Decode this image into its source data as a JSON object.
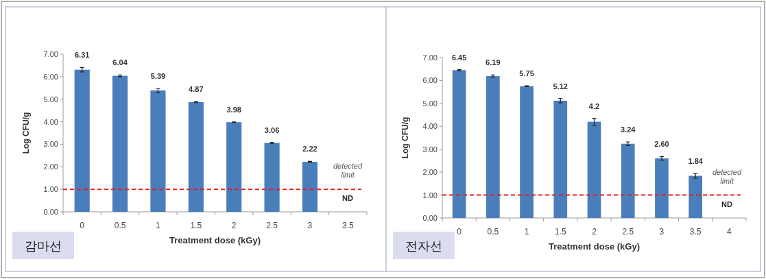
{
  "chart_data": [
    {
      "type": "bar",
      "xlabel": "Treatment dose (kGy)",
      "ylabel": "Log CFU/g",
      "categories": [
        "0",
        "0.5",
        "1",
        "1.5",
        "2",
        "2.5",
        "3",
        "3.5"
      ],
      "values": [
        6.31,
        6.04,
        5.39,
        4.87,
        3.98,
        3.06,
        2.22,
        null
      ],
      "errors": [
        0.1,
        0.04,
        0.08,
        0.02,
        0.01,
        0.02,
        0.02,
        null
      ],
      "value_labels": [
        "6.31",
        "6.04",
        "5.39",
        "4.87",
        "3.98",
        "3.06",
        "2.22",
        null
      ],
      "color": "#4a7ebb",
      "ylim": [
        0,
        7
      ],
      "yticks": [
        {
          "value": 0,
          "label": "0.00"
        },
        {
          "value": 1,
          "label": "1.00"
        },
        {
          "value": 2,
          "label": "2.00"
        },
        {
          "value": 3,
          "label": "3.00"
        },
        {
          "value": 4,
          "label": "4.00"
        },
        {
          "value": 5,
          "label": "5.00"
        },
        {
          "value": 6,
          "label": "6.00"
        },
        {
          "value": 7,
          "label": "7.00"
        }
      ],
      "ref_lines": [
        {
          "axis": "y",
          "value": 1,
          "label": "detected limit",
          "color": "#e02020",
          "line_style": "dashed"
        }
      ],
      "annotations": [
        "ND",
        "감마선"
      ]
    },
    {
      "type": "bar",
      "xlabel": "Treatment dose (kGy)",
      "ylabel": "Log CFU/g",
      "categories": [
        "0",
        "0.5",
        "1",
        "1.5",
        "2",
        "2.5",
        "3",
        "3.5",
        "4"
      ],
      "values": [
        6.45,
        6.19,
        5.75,
        5.12,
        4.2,
        3.24,
        2.6,
        1.84,
        null
      ],
      "errors": [
        0.02,
        0.05,
        0.02,
        0.1,
        0.15,
        0.08,
        0.08,
        0.1,
        null
      ],
      "value_labels": [
        "6.45",
        "6.19",
        "5.75",
        "5.12",
        "4.2",
        "3.24",
        "2.60",
        "1.84",
        null
      ],
      "color": "#4a7ebb",
      "ylim": [
        0,
        7
      ],
      "yticks": [
        {
          "value": 0,
          "label": "0.00"
        },
        {
          "value": 1,
          "label": "1.00"
        },
        {
          "value": 2,
          "label": "2.00"
        },
        {
          "value": 3,
          "label": "3.00"
        },
        {
          "value": 4,
          "label": "4.00"
        },
        {
          "value": 5,
          "label": "5.00"
        },
        {
          "value": 6,
          "label": "6.00"
        },
        {
          "value": 7,
          "label": "7.00"
        }
      ],
      "ref_lines": [
        {
          "axis": "y",
          "value": 1,
          "label": "detected limit",
          "color": "#e02020",
          "line_style": "dashed"
        }
      ],
      "annotations": [
        "ND",
        "전자선"
      ]
    }
  ]
}
